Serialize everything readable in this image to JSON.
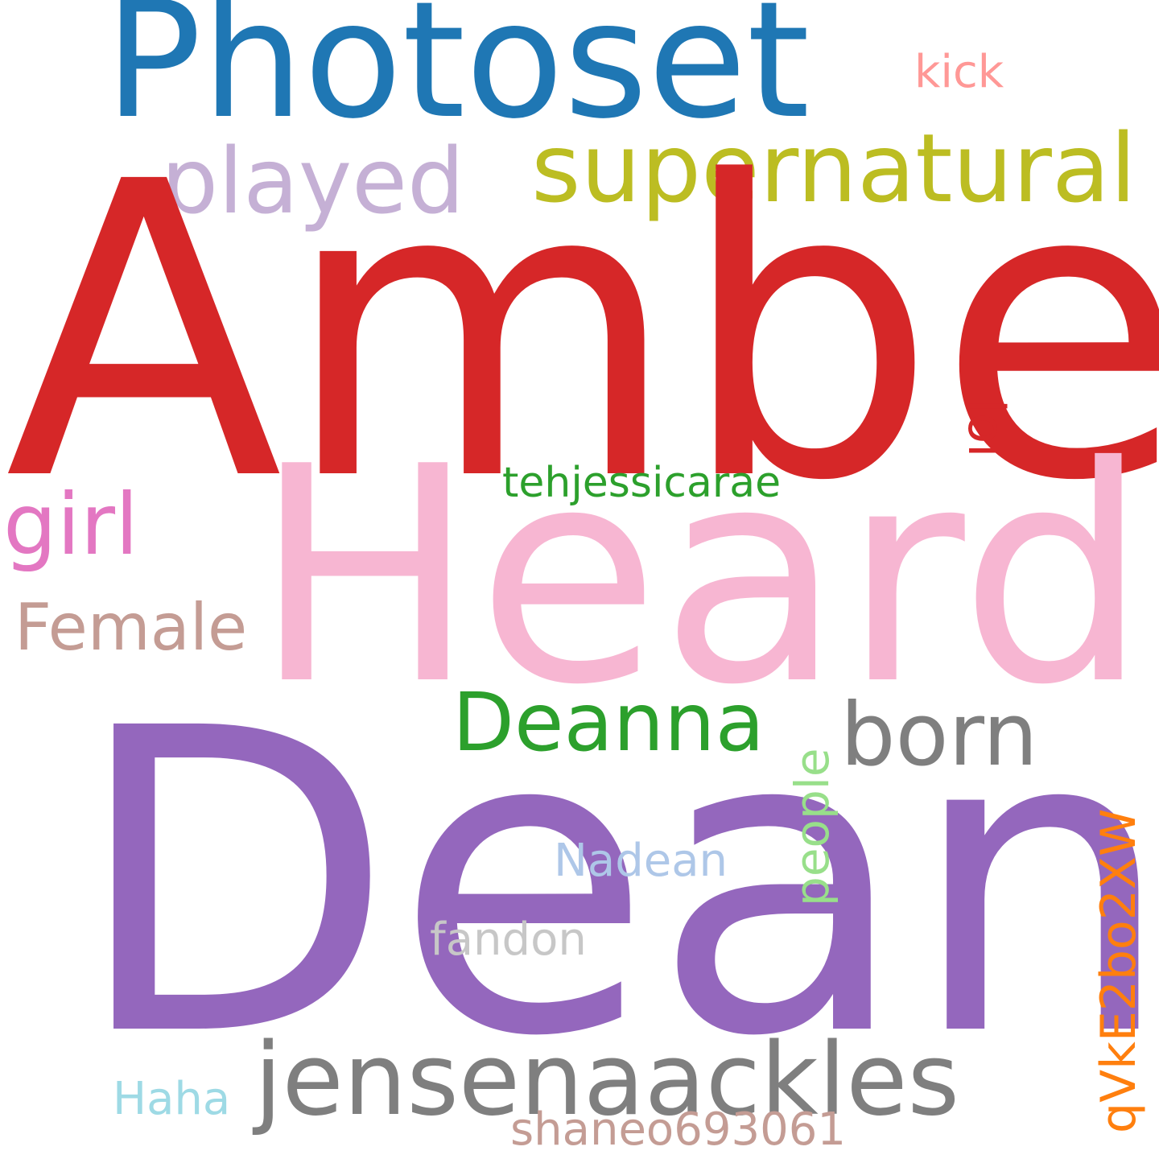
{
  "words": {
    "amber": {
      "text": "Amber",
      "color": "#d62728"
    },
    "dean": {
      "text": "Dean",
      "color": "#9467bd"
    },
    "heard": {
      "text": "Heard",
      "color": "#f7b6d2"
    },
    "photoset": {
      "text": "Photoset",
      "color": "#1f77b4"
    },
    "supernatural": {
      "text": "supernatural",
      "color": "#bcbd22"
    },
    "played": {
      "text": "played",
      "color": "#c5b0d5"
    },
    "jensenaackles": {
      "text": "jensenaackles",
      "color": "#7f7f7f"
    },
    "deanna": {
      "text": "Deanna",
      "color": "#2ca02c"
    },
    "born": {
      "text": "born",
      "color": "#7f7f7f"
    },
    "girl": {
      "text": "girl",
      "color": "#e377c2"
    },
    "female": {
      "text": "Female",
      "color": "#c49c94"
    },
    "tehjessicarae": {
      "text": "tehjessicarae",
      "color": "#2ca02c"
    },
    "lol": {
      "text": "lol",
      "color": "#d62728"
    },
    "kick": {
      "text": "kick",
      "color": "#ff9896"
    },
    "people": {
      "text": "people",
      "color": "#98df8a"
    },
    "nadean": {
      "text": "Nadean",
      "color": "#aec7e8"
    },
    "fandon": {
      "text": "fandon",
      "color": "#c7c7c7"
    },
    "qvk": {
      "text": "qVkE2bo2XW",
      "color": "#ff7f0e"
    },
    "haha": {
      "text": "Haha",
      "color": "#9edae5"
    },
    "shaneo": {
      "text": "shaneo693061",
      "color": "#c49c94"
    }
  }
}
